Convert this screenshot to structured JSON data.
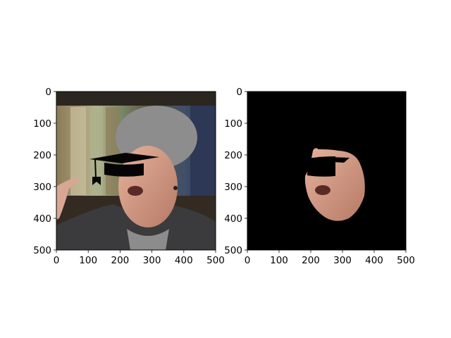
{
  "chart_data": [
    {
      "type": "image",
      "panel": "left",
      "content": "photo of a woman speaking with a black graduation cap overlaid on her eyes",
      "xlim": [
        0,
        500
      ],
      "ylim": [
        500,
        0
      ],
      "xticks": [
        "0",
        "100",
        "200",
        "300",
        "400",
        "500"
      ],
      "yticks": [
        "0",
        "100",
        "200",
        "300",
        "400",
        "500"
      ],
      "title": "",
      "xlabel": "",
      "ylabel": ""
    },
    {
      "type": "image",
      "panel": "right",
      "content": "segmented face region on a black background with the cap area masked out",
      "xlim": [
        0,
        500
      ],
      "ylim": [
        500,
        0
      ],
      "xticks": [
        "0",
        "100",
        "200",
        "300",
        "400",
        "500"
      ],
      "yticks": [
        "0",
        "100",
        "200",
        "300",
        "400",
        "500"
      ],
      "title": "",
      "xlabel": "",
      "ylabel": ""
    }
  ],
  "colors": {
    "background": "#ffffff",
    "mask": "#000000",
    "skin": "#d9a08c",
    "hair": "#8a8a8a",
    "jacket": "#3a3a3a",
    "bookshelf": "#6b5a3c"
  }
}
